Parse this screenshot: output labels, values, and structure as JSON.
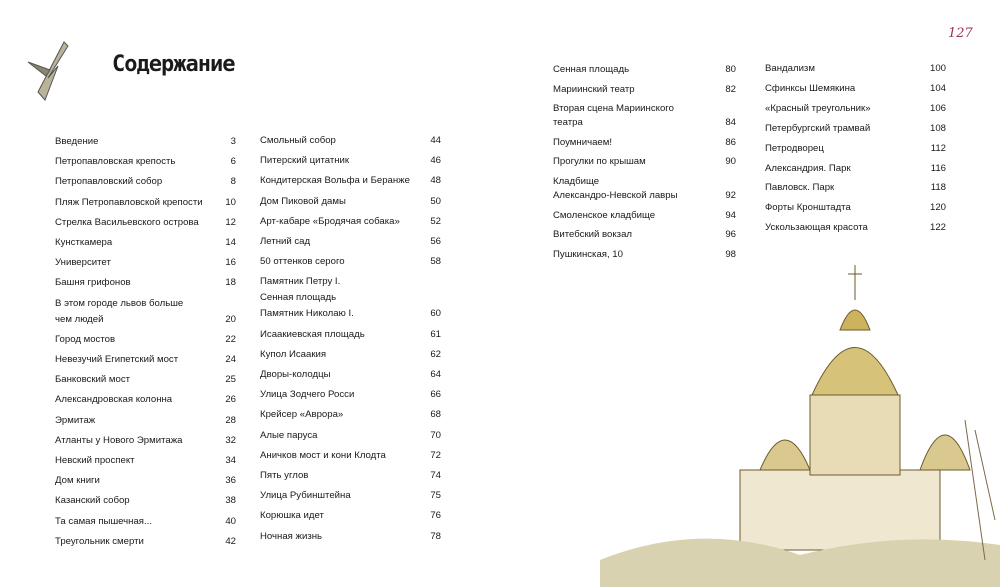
{
  "page_number": "127",
  "title": "Содержание",
  "columns": [
    {
      "entries": [
        {
          "lines": [
            "Введение"
          ],
          "page": 3
        },
        {
          "lines": [
            "Петропавловская крепость"
          ],
          "page": 6
        },
        {
          "lines": [
            "Петропавловский собор"
          ],
          "page": 8
        },
        {
          "lines": [
            "Пляж Петропавловской крепости"
          ],
          "page": 10
        },
        {
          "lines": [
            "Стрелка Васильевского острова"
          ],
          "page": 12
        },
        {
          "lines": [
            "Кунсткамера"
          ],
          "page": 14
        },
        {
          "lines": [
            "Университет"
          ],
          "page": 16
        },
        {
          "lines": [
            "Башня грифонов"
          ],
          "page": 18
        },
        {
          "lines": [
            "В этом городе львов больше",
            "чем людей"
          ],
          "page": 20
        },
        {
          "lines": [
            "Город мостов"
          ],
          "page": 22
        },
        {
          "lines": [
            "Невезучий Египетский мост"
          ],
          "page": 24
        },
        {
          "lines": [
            "Банковский мост"
          ],
          "page": 25
        },
        {
          "lines": [
            "Александровская колонна"
          ],
          "page": 26
        },
        {
          "lines": [
            "Эрмитаж"
          ],
          "page": 28
        },
        {
          "lines": [
            "Атланты у Нового Эрмитажа"
          ],
          "page": 32
        },
        {
          "lines": [
            "Невский проспект"
          ],
          "page": 34
        },
        {
          "lines": [
            "Дом книги"
          ],
          "page": 36
        },
        {
          "lines": [
            "Казанский собор"
          ],
          "page": 38
        },
        {
          "lines": [
            "Та самая пышечная..."
          ],
          "page": 40
        },
        {
          "lines": [
            "Треугольник смерти"
          ],
          "page": 42
        }
      ]
    },
    {
      "entries": [
        {
          "lines": [
            "Смольный собор"
          ],
          "page": 44
        },
        {
          "lines": [
            "Питерский цитатник"
          ],
          "page": 46
        },
        {
          "lines": [
            "Кондитерская Вольфа и Беранже"
          ],
          "page": 48
        },
        {
          "lines": [
            "Дом Пиковой дамы"
          ],
          "page": 50
        },
        {
          "lines": [
            "Арт-кабаре «Бродячая собака»"
          ],
          "page": 52
        },
        {
          "lines": [
            "Летний сад"
          ],
          "page": 56
        },
        {
          "lines": [
            "50 оттенков серого"
          ],
          "page": 58
        },
        {
          "lines": [
            "Памятник Петру I.",
            "Сенная площадь",
            "Памятник Николаю I."
          ],
          "page": 60
        },
        {
          "lines": [
            "Исаакиевская площадь"
          ],
          "page": 61
        },
        {
          "lines": [
            "Купол Исаакия"
          ],
          "page": 62
        },
        {
          "lines": [
            "Дворы-колодцы"
          ],
          "page": 64
        },
        {
          "lines": [
            "Улица Зодчего Росси"
          ],
          "page": 66
        },
        {
          "lines": [
            "Крейсер «Аврора»"
          ],
          "page": 68
        },
        {
          "lines": [
            "Алые паруса"
          ],
          "page": 70
        },
        {
          "lines": [
            "Аничков мост и кони Клодта"
          ],
          "page": 72
        },
        {
          "lines": [
            "Пять углов"
          ],
          "page": 74
        },
        {
          "lines": [
            "Улица Рубинштейна"
          ],
          "page": 75
        },
        {
          "lines": [
            "Корюшка идет"
          ],
          "page": 76
        },
        {
          "lines": [
            "Ночная жизнь"
          ],
          "page": 78
        }
      ]
    },
    {
      "entries": [
        {
          "lines": [
            "Сенная площадь"
          ],
          "page": 80
        },
        {
          "lines": [
            "Мариинский театр"
          ],
          "page": 82
        },
        {
          "lines": [
            "Вторая сцена Мариинского",
            "театра"
          ],
          "page": 84
        },
        {
          "lines": [
            "Поумничаем!"
          ],
          "page": 86
        },
        {
          "lines": [
            "Прогулки по крышам"
          ],
          "page": 90
        },
        {
          "lines": [
            "Кладбище",
            "Александро-Невской лавры"
          ],
          "page": 92
        },
        {
          "lines": [
            "Смоленское кладбище"
          ],
          "page": 94
        },
        {
          "lines": [
            "Витебский вокзал"
          ],
          "page": 96
        },
        {
          "lines": [
            "Пушкинская, 10"
          ],
          "page": 98
        }
      ]
    },
    {
      "entries": [
        {
          "lines": [
            "Вандализм"
          ],
          "page": 100
        },
        {
          "lines": [
            "Сфинксы Шемякина"
          ],
          "page": 104
        },
        {
          "lines": [
            "«Красный треугольник»"
          ],
          "page": 106
        },
        {
          "lines": [
            "Петербургский трамвай"
          ],
          "page": 108
        },
        {
          "lines": [
            "Петродворец"
          ],
          "page": 112
        },
        {
          "lines": [
            "Александрия. Парк"
          ],
          "page": 116
        },
        {
          "lines": [
            "Павловск. Парк"
          ],
          "page": 118
        },
        {
          "lines": [
            "Форты Кронштадта"
          ],
          "page": 120
        },
        {
          "lines": [
            "Ускользающая красота"
          ],
          "page": 122
        }
      ]
    }
  ]
}
